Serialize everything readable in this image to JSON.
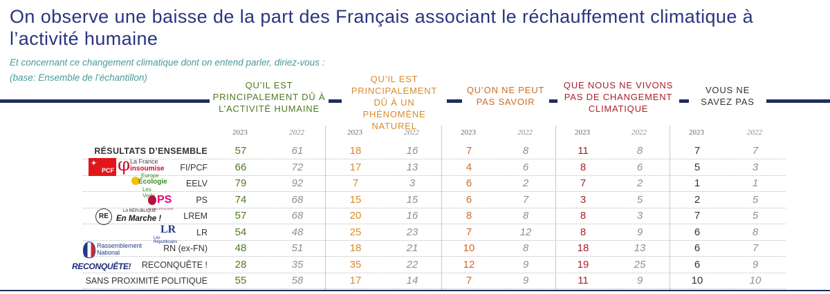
{
  "title": "On observe une baisse de la part des Français associant le réchauffement climatique à l’activité humaine",
  "subtitle_line1": "Et concernant ce changement climatique dont on entend parler, diriez-vous :",
  "subtitle_line2": "(base: Ensemble de l’échantillon)",
  "chart_data": {
    "type": "table",
    "columns": [
      {
        "label": "Qu’il est principalement dû à l’activité humaine",
        "color": "#4d7a1f"
      },
      {
        "label": "Qu’il est principalement dû à un phénomène naturel",
        "color": "#d98a2b"
      },
      {
        "label": "Qu’on ne peut pas savoir",
        "color": "#cf6a26"
      },
      {
        "label": "Que nous ne vivons pas de changement climatique",
        "color": "#a8202a"
      },
      {
        "label": "Vous ne savez pas",
        "color": "#333333"
      }
    ],
    "years": [
      "2023",
      "2022"
    ],
    "rows": [
      {
        "label": "RÉSULTATS D’ENSEMBLE",
        "values": [
          [
            57,
            61
          ],
          [
            18,
            16
          ],
          [
            7,
            8
          ],
          [
            11,
            8
          ],
          [
            7,
            7
          ]
        ]
      },
      {
        "label": "FI/PCF",
        "values": [
          [
            66,
            72
          ],
          [
            17,
            13
          ],
          [
            4,
            6
          ],
          [
            8,
            6
          ],
          [
            5,
            3
          ]
        ]
      },
      {
        "label": "EELV",
        "values": [
          [
            79,
            92
          ],
          [
            7,
            3
          ],
          [
            6,
            2
          ],
          [
            7,
            2
          ],
          [
            1,
            1
          ]
        ]
      },
      {
        "label": "PS",
        "values": [
          [
            74,
            68
          ],
          [
            15,
            15
          ],
          [
            6,
            7
          ],
          [
            3,
            5
          ],
          [
            2,
            5
          ]
        ]
      },
      {
        "label": "LREM",
        "values": [
          [
            57,
            68
          ],
          [
            20,
            16
          ],
          [
            8,
            8
          ],
          [
            8,
            3
          ],
          [
            7,
            5
          ]
        ]
      },
      {
        "label": "LR",
        "values": [
          [
            54,
            48
          ],
          [
            25,
            23
          ],
          [
            7,
            12
          ],
          [
            8,
            9
          ],
          [
            6,
            8
          ]
        ]
      },
      {
        "label": "RN (ex-FN)",
        "values": [
          [
            48,
            51
          ],
          [
            18,
            21
          ],
          [
            10,
            8
          ],
          [
            18,
            13
          ],
          [
            6,
            7
          ]
        ]
      },
      {
        "label": "RECONQUÊTE !",
        "values": [
          [
            28,
            35
          ],
          [
            35,
            22
          ],
          [
            12,
            9
          ],
          [
            19,
            25
          ],
          [
            6,
            9
          ]
        ]
      },
      {
        "label": "SANS PROXIMITÉ POLITIQUE",
        "values": [
          [
            55,
            58
          ],
          [
            17,
            14
          ],
          [
            7,
            9
          ],
          [
            11,
            9
          ],
          [
            10,
            10
          ]
        ]
      }
    ]
  },
  "logos": {
    "pcf": "PCF",
    "lfi_line1": "La France",
    "lfi_line2": "insoumise",
    "eelv_line1": "Europe",
    "eelv_line2": "Écologie",
    "eelv_line3": "Les Verts",
    "ps": "PS",
    "ps_sub": "SOCIAL-ÉCOLOGIE",
    "re": "RE",
    "lrem_line1": "LA RÉPUBLIQUE",
    "lrem_line2": "En Marche !",
    "lr": "LR",
    "lr_sub1": "Les",
    "lr_sub2": "Républicains",
    "rn_line1": "Rassemblement",
    "rn_line2": "National",
    "reconquete": "RECONQUÊTE!"
  }
}
